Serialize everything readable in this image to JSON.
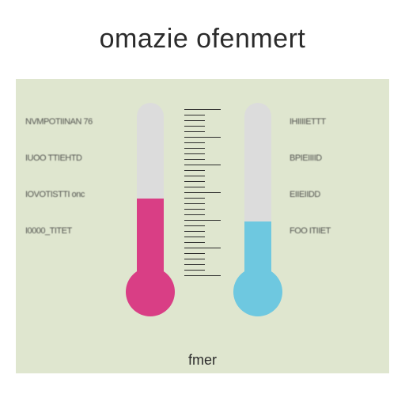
{
  "title": "omazie ofenmert",
  "caption": "fmer",
  "panel": {
    "background_color": "#dfe6cf"
  },
  "left_labels": [
    "NVMPOTIINAN   76",
    "IUOO TTIEHTD",
    "IOVOTISTTI  onc",
    "I0000_TITET"
  ],
  "right_labels": [
    "IHIIIIETTT",
    "BPIEIIIID",
    "EIIEIIDD",
    "FOO  ITIIET"
  ],
  "thermometers": {
    "left": {
      "tube_color": "#dcdcdc",
      "fill_color": "#d93e85",
      "bulb_color": "#d93e85",
      "fill_percent": 45
    },
    "right": {
      "tube_color": "#dcdcdc",
      "fill_color": "#6ec8e0",
      "bulb_color": "#6ec8e0",
      "fill_percent": 32
    }
  },
  "scale": {
    "tick_color": "#2b2b2b",
    "major_ticks": 6,
    "minor_per_major": 4
  }
}
